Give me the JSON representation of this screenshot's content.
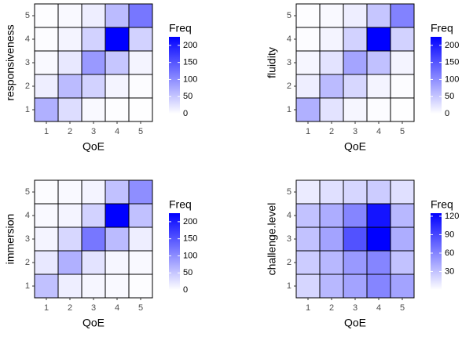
{
  "chart_data": [
    {
      "type": "heatmap",
      "x_label": "QoE",
      "y_label": "responsiveness",
      "x": [
        1,
        2,
        3,
        4,
        5
      ],
      "y": [
        1,
        2,
        3,
        4,
        5
      ],
      "values": [
        [
          70,
          30,
          5,
          2,
          1
        ],
        [
          15,
          60,
          40,
          10,
          3
        ],
        [
          5,
          20,
          90,
          50,
          10
        ],
        [
          3,
          10,
          40,
          225,
          40
        ],
        [
          2,
          5,
          15,
          60,
          120
        ]
      ],
      "colors": [
        "#ffffff",
        "#0000ff"
      ],
      "legend_title": "Freq",
      "clim": [
        0,
        225
      ],
      "cticks": [
        0,
        50,
        100,
        150,
        200
      ]
    },
    {
      "type": "heatmap",
      "x_label": "QoE",
      "y_label": "fluidity",
      "x": [
        1,
        2,
        3,
        4,
        5
      ],
      "y": [
        1,
        2,
        3,
        4,
        5
      ],
      "values": [
        [
          70,
          25,
          8,
          3,
          1
        ],
        [
          15,
          60,
          35,
          10,
          3
        ],
        [
          8,
          25,
          80,
          55,
          10
        ],
        [
          3,
          10,
          40,
          225,
          40
        ],
        [
          2,
          5,
          15,
          50,
          110
        ]
      ],
      "colors": [
        "#ffffff",
        "#0000ff"
      ],
      "legend_title": "Freq",
      "clim": [
        0,
        225
      ],
      "cticks": [
        0,
        50,
        100,
        150,
        200
      ]
    },
    {
      "type": "heatmap",
      "x_label": "QoE",
      "y_label": "immersion",
      "x": [
        1,
        2,
        3,
        4,
        5
      ],
      "y": [
        1,
        2,
        3,
        4,
        5
      ],
      "values": [
        [
          55,
          15,
          8,
          5,
          2
        ],
        [
          20,
          70,
          25,
          8,
          5
        ],
        [
          10,
          35,
          120,
          60,
          15
        ],
        [
          5,
          10,
          40,
          225,
          55
        ],
        [
          3,
          5,
          10,
          55,
          100
        ]
      ],
      "colors": [
        "#ffffff",
        "#0000ff"
      ],
      "legend_title": "Freq",
      "clim": [
        0,
        225
      ],
      "cticks": [
        0,
        50,
        100,
        150,
        200
      ]
    },
    {
      "type": "heatmap",
      "x_label": "QoE",
      "y_label": "challenge.level",
      "x": [
        1,
        2,
        3,
        4,
        5
      ],
      "y": [
        1,
        2,
        3,
        4,
        5
      ],
      "values": [
        [
          20,
          35,
          45,
          60,
          45
        ],
        [
          25,
          35,
          50,
          60,
          30
        ],
        [
          30,
          45,
          85,
          125,
          40
        ],
        [
          30,
          40,
          60,
          115,
          35
        ],
        [
          10,
          15,
          20,
          25,
          15
        ]
      ],
      "colors": [
        "#ffffff",
        "#0000ff"
      ],
      "legend_title": "Freq",
      "clim": [
        0,
        125
      ],
      "cticks": [
        30,
        60,
        90,
        120
      ]
    }
  ]
}
